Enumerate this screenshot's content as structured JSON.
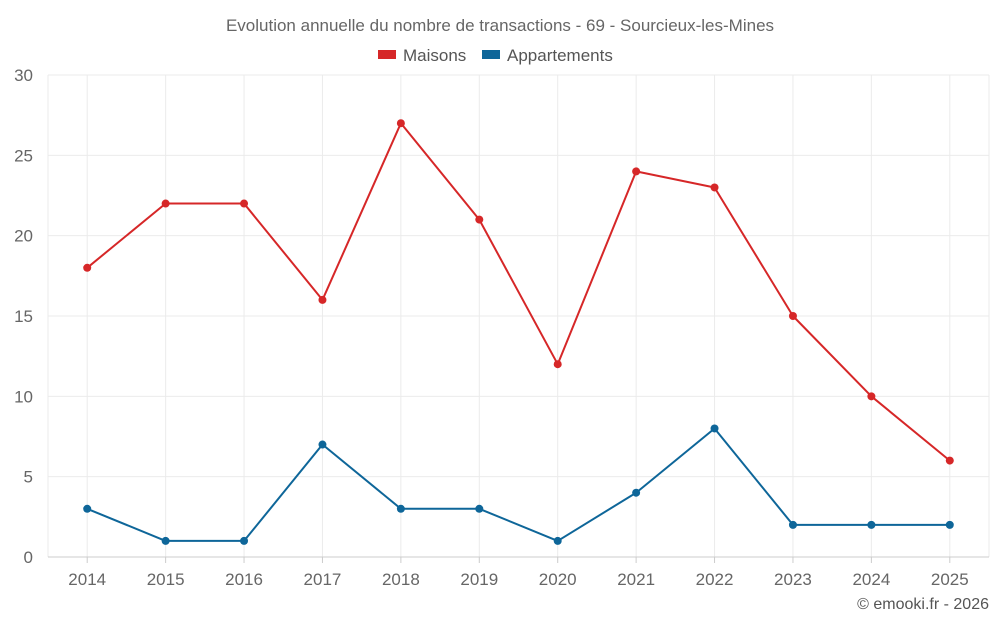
{
  "chart_data": {
    "type": "line",
    "title": "Evolution annuelle du nombre de transactions - 69 - Sourcieux-les-Mines",
    "x": [
      "2014",
      "2015",
      "2016",
      "2017",
      "2018",
      "2019",
      "2020",
      "2021",
      "2022",
      "2023",
      "2024",
      "2025"
    ],
    "series": [
      {
        "name": "Maisons",
        "color": "#d62728",
        "values": [
          18,
          22,
          22,
          16,
          27,
          21,
          12,
          24,
          23,
          15,
          10,
          6
        ]
      },
      {
        "name": "Appartements",
        "color": "#0e6699",
        "values": [
          3,
          1,
          1,
          7,
          3,
          3,
          1,
          4,
          8,
          2,
          2,
          2
        ]
      }
    ],
    "ylim": [
      0,
      30
    ],
    "yticks": [
      0,
      5,
      10,
      15,
      20,
      25,
      30
    ],
    "xlabel": "",
    "ylabel": "",
    "grid": true,
    "legend": "top-center"
  },
  "credit": "© emooki.fr - 2026"
}
